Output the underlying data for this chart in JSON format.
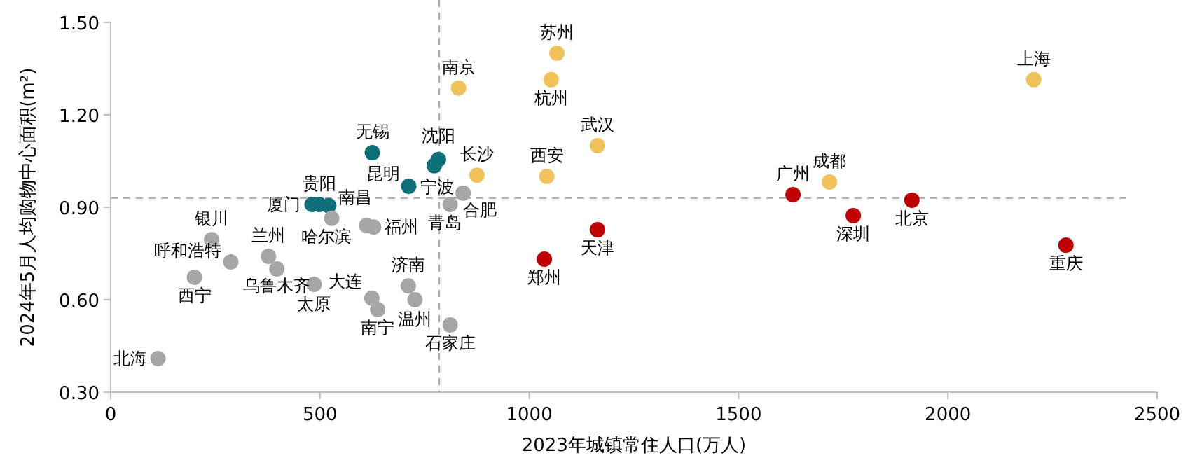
{
  "chart_data": {
    "type": "scatter",
    "xlabel": "2023年城镇常住人口(万人)",
    "ylabel": "2024年5月人均购物中心面积(m²)",
    "xlim": [
      0,
      2500
    ],
    "xticks": [
      0,
      500,
      1000,
      1500,
      2000,
      2500
    ],
    "ylim": [
      0.3,
      1.5
    ],
    "yticks": [
      {
        "value": 0.3,
        "label": "0.30"
      },
      {
        "value": 0.6,
        "label": "0.60"
      },
      {
        "value": 0.9,
        "label": "0.90"
      },
      {
        "value": 1.2,
        "label": "1.20"
      },
      {
        "value": 1.5,
        "label": "1.50"
      }
    ],
    "grid": false,
    "marker": "circle",
    "series": [
      {
        "color": "#0e6f78",
        "x": [
          625,
          783,
          773,
          712,
          481,
          498,
          521
        ],
        "values": [
          1.077,
          1.055,
          1.035,
          0.968,
          0.909,
          0.909,
          0.905
        ]
      },
      {
        "color": "#f0c35a",
        "x": [
          831,
          1066,
          1052,
          875,
          1042,
          1163,
          1717,
          2205
        ],
        "values": [
          1.287,
          1.4,
          1.314,
          1.004,
          1.0,
          1.1,
          0.982,
          1.314
        ]
      },
      {
        "color": "#c00000",
        "x": [
          1630,
          1914,
          1774,
          1163,
          1036,
          2282
        ],
        "values": [
          0.941,
          0.923,
          0.873,
          0.827,
          0.732,
          0.777
        ]
      },
      {
        "color": "#a6a6a6",
        "x": [
          528,
          611,
          628,
          811,
          842,
          241,
          377,
          287,
          397,
          200,
          486,
          624,
          638,
          711,
          727,
          811,
          113
        ],
        "values": [
          0.864,
          0.841,
          0.836,
          0.909,
          0.946,
          0.795,
          0.741,
          0.723,
          0.7,
          0.673,
          0.65,
          0.605,
          0.568,
          0.645,
          0.6,
          0.518,
          0.409
        ]
      }
    ],
    "ref_lines": [
      {
        "axis": "x",
        "value": 785,
        "color": "#a6a6a6",
        "line_style": "dashed"
      },
      {
        "axis": "y",
        "value": 0.93,
        "color": "#a6a6a6",
        "line_style": "dashed"
      }
    ],
    "annotations": [
      {
        "text": "苏州",
        "x": 1066,
        "y": 1.4
      },
      {
        "text": "杭州",
        "x": 1052,
        "y": 1.314
      },
      {
        "text": "南京",
        "x": 831,
        "y": 1.287
      },
      {
        "text": "上海",
        "x": 2205,
        "y": 1.314
      },
      {
        "text": "武汉",
        "x": 1163,
        "y": 1.1
      },
      {
        "text": "无锡",
        "x": 625,
        "y": 1.077
      },
      {
        "text": "沈阳",
        "x": 783,
        "y": 1.055
      },
      {
        "text": "长沙",
        "x": 875,
        "y": 1.004
      },
      {
        "text": "西安",
        "x": 1042,
        "y": 1.0
      },
      {
        "text": "成都",
        "x": 1717,
        "y": 0.982
      },
      {
        "text": "昆明",
        "x": 712,
        "y": 0.968
      },
      {
        "text": "宁波",
        "x": 773,
        "y": 1.035
      },
      {
        "text": "广州",
        "x": 1630,
        "y": 0.941
      },
      {
        "text": "贵阳",
        "x": 498,
        "y": 0.909
      },
      {
        "text": "厦门",
        "x": 481,
        "y": 0.909
      },
      {
        "text": "南昌",
        "x": 521,
        "y": 0.905
      },
      {
        "text": "青岛",
        "x": 811,
        "y": 0.909
      },
      {
        "text": "合肥",
        "x": 842,
        "y": 0.946
      },
      {
        "text": "北京",
        "x": 1914,
        "y": 0.923
      },
      {
        "text": "深圳",
        "x": 1774,
        "y": 0.873
      },
      {
        "text": "哈尔滨",
        "x": 528,
        "y": 0.864
      },
      {
        "text": "福州",
        "x": 628,
        "y": 0.836
      },
      {
        "text": "天津",
        "x": 1163,
        "y": 0.827
      },
      {
        "text": "银川",
        "x": 241,
        "y": 0.795
      },
      {
        "text": "兰州",
        "x": 377,
        "y": 0.741
      },
      {
        "text": "郑州",
        "x": 1036,
        "y": 0.732
      },
      {
        "text": "重庆",
        "x": 2282,
        "y": 0.777
      },
      {
        "text": "呼和浩特",
        "x": 287,
        "y": 0.723
      },
      {
        "text": "乌鲁木齐",
        "x": 397,
        "y": 0.7
      },
      {
        "text": "西宁",
        "x": 200,
        "y": 0.673
      },
      {
        "text": "太原",
        "x": 486,
        "y": 0.65
      },
      {
        "text": "大连",
        "x": 624,
        "y": 0.605
      },
      {
        "text": "济南",
        "x": 711,
        "y": 0.645
      },
      {
        "text": "温州",
        "x": 727,
        "y": 0.6
      },
      {
        "text": "南宁",
        "x": 638,
        "y": 0.568
      },
      {
        "text": "石家庄",
        "x": 811,
        "y": 0.518
      },
      {
        "text": "北海",
        "x": 113,
        "y": 0.409
      }
    ]
  }
}
